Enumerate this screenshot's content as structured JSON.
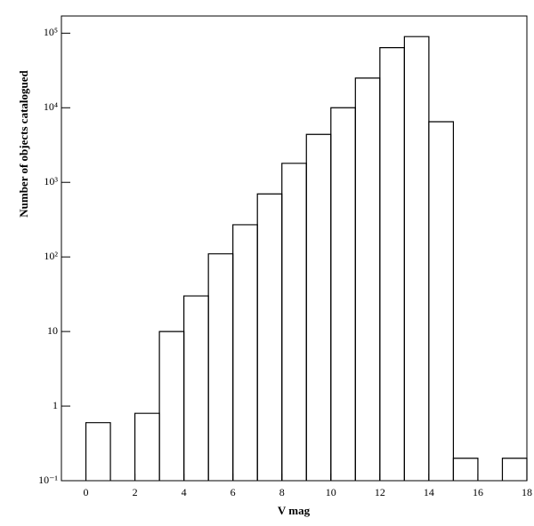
{
  "chart_data": {
    "type": "histogram",
    "x_label": "V mag",
    "y_label": "Number of objects catalogued",
    "bins": [
      -1,
      0,
      1,
      2,
      3,
      4,
      5,
      6,
      7,
      8,
      9,
      10,
      11,
      12,
      13,
      14,
      15,
      16,
      17,
      18
    ],
    "values": [
      0,
      0.6,
      0,
      0.8,
      10,
      30,
      110,
      270,
      700,
      1800,
      4400,
      10000,
      25000,
      64000,
      90000,
      6500,
      0.2,
      0,
      0.2
    ],
    "color": "#000000",
    "log_y": true,
    "xlim": [
      -1,
      18
    ],
    "ylim": [
      0.1,
      170000
    ],
    "xticks": [
      0,
      2,
      4,
      6,
      8,
      10,
      12,
      14,
      16,
      18
    ],
    "yticks": [
      {
        "value": 0.1,
        "label": "10⁻¹"
      },
      1,
      10,
      {
        "value": 100,
        "label": "10²"
      },
      {
        "value": 1000,
        "label": "10³"
      },
      {
        "value": 10000,
        "label": "10⁴"
      },
      {
        "value": 100000,
        "label": "10⁵"
      }
    ]
  }
}
